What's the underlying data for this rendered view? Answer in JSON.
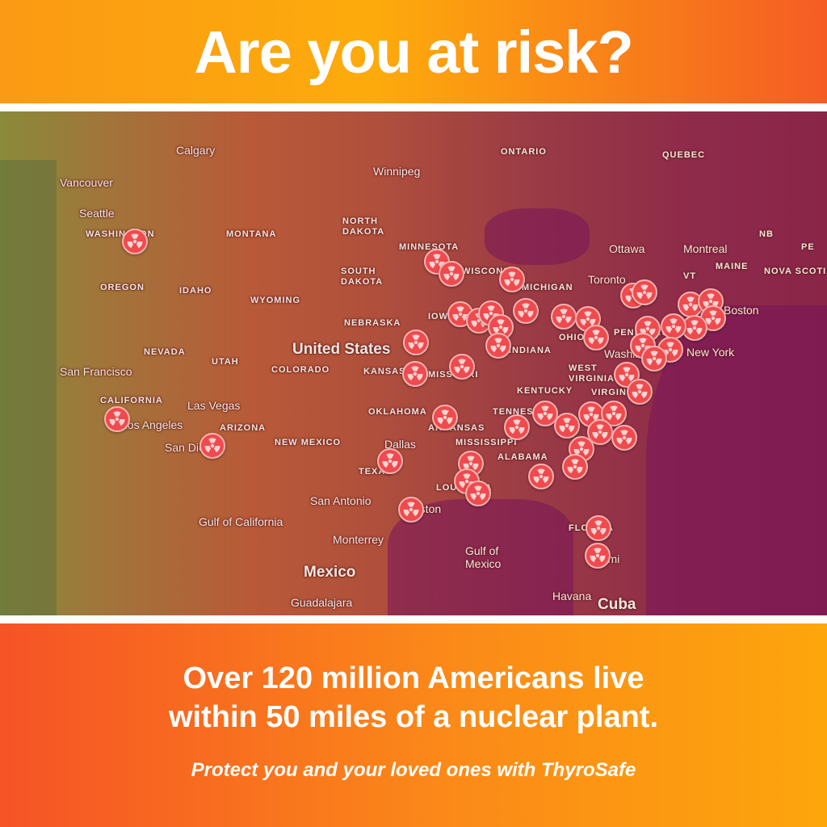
{
  "header": {
    "title": "Are you at risk?"
  },
  "map": {
    "marker_icon": "radiation-icon",
    "marker_color": "#ef4a4e",
    "labels": {
      "calgary": "Calgary",
      "vancouver": "Vancouver",
      "seattle": "Seattle",
      "washington_state": "WASHINGTON",
      "montana": "MONTANA",
      "oregon": "OREGON",
      "idaho": "IDAHO",
      "wyoming": "WYOMING",
      "north_dakota": "NORTH\nDAKOTA",
      "south_dakota": "SOUTH\nDAKOTA",
      "minnesota": "MINNESOTA",
      "wisconsin": "WISCONSIN",
      "michigan": "MICHIGAN",
      "iowa": "IOWA",
      "nebraska": "NEBRASKA",
      "nevada": "NEVADA",
      "utah": "UTAH",
      "colorado": "COLORADO",
      "kansas": "KANSAS",
      "missouri": "MISSOURI",
      "indiana": "INDIANA",
      "ohio": "OHIO",
      "united_states": "United States",
      "san_francisco": "San Francisco",
      "california": "CALIFORNIA",
      "las_vegas": "Las Vegas",
      "los_angeles": "Los Angeles",
      "san_diego": "San Diego",
      "arizona": "ARIZONA",
      "new_mexico": "NEW MEXICO",
      "oklahoma": "OKLAHOMA",
      "arkansas": "ARKANSAS",
      "tennessee": "TENNESSEE",
      "kentucky": "KENTUCKY",
      "west_virginia": "WEST\nVIRGINIA",
      "virginia": "VIRGINIA",
      "mississippi": "MISSISSIPPI",
      "alabama": "ALABAMA",
      "texas": "TEXAS",
      "dallas": "Dallas",
      "san_antonio": "San Antonio",
      "houston": "Houston",
      "louisiana": "LOUISIANA",
      "florida": "FLORIDA",
      "miami": "Miami",
      "gulf_of_mexico": "Gulf of\nMexico",
      "gulf_of_california": "Gulf of California",
      "monterrey": "Monterrey",
      "mexico": "Mexico",
      "guadalajara": "Guadalajara",
      "havana": "Havana",
      "cuba": "Cuba",
      "ontario": "ONTARIO",
      "quebec": "QUEBEC",
      "winnipeg": "Winnipeg",
      "ottawa": "Ottawa",
      "montreal": "Montreal",
      "toronto": "Toronto",
      "nb": "NB",
      "pe": "PE",
      "maine": "MAINE",
      "nova_scotia": "NOVA SCOTIA",
      "vt": "VT",
      "boston": "Boston",
      "washington_dc": "Washington",
      "new_york": "New York",
      "pennsylvania": "PENNSYLVANIA"
    }
  },
  "footer": {
    "headline_line1": "Over 120 million Americans live",
    "headline_line2": "within 50 miles of a nuclear plant.",
    "tagline": "Protect you and your loved ones with ThyroSafe"
  }
}
